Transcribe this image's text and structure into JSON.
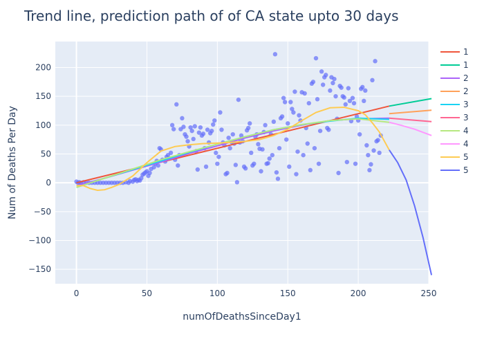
{
  "chart_data": {
    "type": "scatter",
    "title": "Trend line, prediction path of of CA state upto 30 days",
    "xlabel": "numOfDeathsSinceDay1",
    "ylabel": "Num of Deaths Per Day",
    "xlim": [
      -15,
      250
    ],
    "ylim": [
      -175,
      245
    ],
    "xticks": [
      0,
      50,
      100,
      150,
      200,
      250
    ],
    "yticks": [
      -150,
      -100,
      -50,
      0,
      50,
      100,
      150,
      200
    ],
    "grid": true,
    "legend_position": "right",
    "colors": {
      "plot_bg": "#e5ecf6",
      "grid": "#ffffff",
      "points": "#636efa"
    },
    "points": [
      [
        0,
        2
      ],
      [
        1,
        0
      ],
      [
        2,
        1
      ],
      [
        3,
        0
      ],
      [
        5,
        1
      ],
      [
        7,
        0
      ],
      [
        9,
        0
      ],
      [
        11,
        0
      ],
      [
        13,
        0
      ],
      [
        15,
        0
      ],
      [
        17,
        0
      ],
      [
        19,
        0
      ],
      [
        21,
        0
      ],
      [
        23,
        0
      ],
      [
        25,
        0
      ],
      [
        27,
        0
      ],
      [
        29,
        0
      ],
      [
        31,
        0
      ],
      [
        33,
        0
      ],
      [
        35,
        1
      ],
      [
        37,
        0
      ],
      [
        38,
        3
      ],
      [
        40,
        2
      ],
      [
        41,
        5
      ],
      [
        42,
        6
      ],
      [
        43,
        3
      ],
      [
        44,
        5
      ],
      [
        45,
        4
      ],
      [
        46,
        8
      ],
      [
        47,
        14
      ],
      [
        48,
        16
      ],
      [
        49,
        18
      ],
      [
        50,
        20
      ],
      [
        51,
        12
      ],
      [
        52,
        17
      ],
      [
        53,
        24
      ],
      [
        55,
        27
      ],
      [
        56,
        33
      ],
      [
        57,
        38
      ],
      [
        58,
        30
      ],
      [
        59,
        60
      ],
      [
        60,
        58
      ],
      [
        61,
        40
      ],
      [
        63,
        37
      ],
      [
        64,
        45
      ],
      [
        65,
        48
      ],
      [
        67,
        52
      ],
      [
        68,
        100
      ],
      [
        69,
        93
      ],
      [
        70,
        40
      ],
      [
        71,
        136
      ],
      [
        72,
        30
      ],
      [
        73,
        48
      ],
      [
        74,
        93
      ],
      [
        75,
        112
      ],
      [
        76,
        97
      ],
      [
        77,
        84
      ],
      [
        78,
        80
      ],
      [
        79,
        72
      ],
      [
        80,
        63
      ],
      [
        81,
        96
      ],
      [
        82,
        90
      ],
      [
        83,
        76
      ],
      [
        84,
        98
      ],
      [
        85,
        55
      ],
      [
        86,
        23
      ],
      [
        87,
        87
      ],
      [
        88,
        96
      ],
      [
        89,
        82
      ],
      [
        90,
        85
      ],
      [
        91,
        60
      ],
      [
        92,
        28
      ],
      [
        93,
        92
      ],
      [
        94,
        70
      ],
      [
        95,
        86
      ],
      [
        96,
        90
      ],
      [
        97,
        101
      ],
      [
        98,
        108
      ],
      [
        99,
        52
      ],
      [
        100,
        33
      ],
      [
        101,
        45
      ],
      [
        102,
        122
      ],
      [
        103,
        92
      ],
      [
        104,
        70
      ],
      [
        105,
        65
      ],
      [
        106,
        15
      ],
      [
        107,
        17
      ],
      [
        108,
        78
      ],
      [
        109,
        60
      ],
      [
        110,
        71
      ],
      [
        111,
        84
      ],
      [
        112,
        68
      ],
      [
        113,
        31
      ],
      [
        114,
        1
      ],
      [
        115,
        144
      ],
      [
        116,
        70
      ],
      [
        117,
        82
      ],
      [
        118,
        72
      ],
      [
        119,
        28
      ],
      [
        120,
        25
      ],
      [
        121,
        91
      ],
      [
        122,
        95
      ],
      [
        123,
        103
      ],
      [
        124,
        52
      ],
      [
        125,
        30
      ],
      [
        126,
        33
      ],
      [
        127,
        80
      ],
      [
        128,
        84
      ],
      [
        129,
        67
      ],
      [
        130,
        59
      ],
      [
        131,
        20
      ],
      [
        132,
        58
      ],
      [
        133,
        88
      ],
      [
        134,
        100
      ],
      [
        135,
        33
      ],
      [
        136,
        34
      ],
      [
        137,
        42
      ],
      [
        138,
        84
      ],
      [
        139,
        48
      ],
      [
        140,
        106
      ],
      [
        141,
        223
      ],
      [
        142,
        18
      ],
      [
        143,
        7
      ],
      [
        144,
        60
      ],
      [
        145,
        112
      ],
      [
        146,
        115
      ],
      [
        147,
        147
      ],
      [
        148,
        140
      ],
      [
        149,
        75
      ],
      [
        150,
        103
      ],
      [
        151,
        28
      ],
      [
        152,
        140
      ],
      [
        153,
        128
      ],
      [
        154,
        122
      ],
      [
        155,
        158
      ],
      [
        156,
        15
      ],
      [
        157,
        54
      ],
      [
        158,
        117
      ],
      [
        159,
        108
      ],
      [
        160,
        157
      ],
      [
        161,
        48
      ],
      [
        162,
        155
      ],
      [
        163,
        95
      ],
      [
        164,
        68
      ],
      [
        165,
        138
      ],
      [
        166,
        22
      ],
      [
        167,
        172
      ],
      [
        168,
        175
      ],
      [
        169,
        60
      ],
      [
        170,
        216
      ],
      [
        171,
        145
      ],
      [
        172,
        33
      ],
      [
        173,
        90
      ],
      [
        174,
        193
      ],
      [
        175,
        170
      ],
      [
        176,
        183
      ],
      [
        177,
        187
      ],
      [
        178,
        95
      ],
      [
        179,
        92
      ],
      [
        180,
        160
      ],
      [
        181,
        183
      ],
      [
        182,
        173
      ],
      [
        183,
        180
      ],
      [
        184,
        150
      ],
      [
        185,
        111
      ],
      [
        186,
        17
      ],
      [
        187,
        168
      ],
      [
        188,
        165
      ],
      [
        189,
        150
      ],
      [
        190,
        148
      ],
      [
        191,
        136
      ],
      [
        192,
        36
      ],
      [
        193,
        164
      ],
      [
        194,
        142
      ],
      [
        195,
        107
      ],
      [
        196,
        147
      ],
      [
        197,
        138
      ],
      [
        198,
        33
      ],
      [
        199,
        115
      ],
      [
        200,
        108
      ],
      [
        201,
        84
      ],
      [
        202,
        163
      ],
      [
        203,
        166
      ],
      [
        204,
        142
      ],
      [
        205,
        160
      ],
      [
        206,
        65
      ],
      [
        207,
        48
      ],
      [
        208,
        22
      ],
      [
        209,
        32
      ],
      [
        210,
        178
      ],
      [
        211,
        56
      ],
      [
        212,
        211
      ],
      [
        213,
        72
      ],
      [
        214,
        74
      ],
      [
        215,
        52
      ],
      [
        216,
        82
      ]
    ],
    "series": [
      {
        "name": "1",
        "color": "#ef553b",
        "x": [
          0,
          222
        ],
        "y": [
          0,
          133
        ]
      },
      {
        "name": "1",
        "color": "#00cc96",
        "x": [
          222,
          252
        ],
        "y": [
          133,
          146
        ]
      },
      {
        "name": "2",
        "color": "#ab63fa",
        "x": [
          0,
          20,
          40,
          60,
          80,
          100,
          120,
          140,
          160,
          180,
          200,
          222
        ],
        "y": [
          -5,
          8,
          22,
          36,
          51,
          64,
          78,
          90,
          100,
          108,
          111,
          112
        ]
      },
      {
        "name": "2",
        "color": "#ffa15a",
        "x": [
          222,
          252
        ],
        "y": [
          120,
          126
        ]
      },
      {
        "name": "3",
        "color": "#19d3f3",
        "x": [
          0,
          20,
          40,
          60,
          80,
          100,
          120,
          140,
          160,
          180,
          200,
          222
        ],
        "y": [
          -8,
          8,
          23,
          38,
          53,
          67,
          80,
          92,
          101,
          107,
          112,
          110
        ]
      },
      {
        "name": "3",
        "color": "#ff6692",
        "x": [
          222,
          252
        ],
        "y": [
          112,
          106
        ]
      },
      {
        "name": "4",
        "color": "#b6e880",
        "x": [
          0,
          20,
          40,
          60,
          80,
          100,
          120,
          140,
          160,
          180,
          200,
          222
        ],
        "y": [
          -8,
          8,
          24,
          40,
          54,
          67,
          80,
          92,
          101,
          108,
          111,
          105
        ]
      },
      {
        "name": "4",
        "color": "#ff97ff",
        "x": [
          222,
          230,
          240,
          252
        ],
        "y": [
          105,
          100,
          93,
          82
        ]
      },
      {
        "name": "5",
        "color": "#fecb52",
        "x": [
          0,
          5,
          10,
          15,
          20,
          25,
          30,
          40,
          50,
          60,
          70,
          80,
          90,
          100,
          110,
          120,
          130,
          140,
          150,
          160,
          170,
          180,
          190,
          200,
          205,
          210,
          215,
          222
        ],
        "y": [
          -5,
          -5,
          -10,
          -13,
          -12,
          -8,
          -3,
          12,
          35,
          55,
          63,
          66,
          68,
          69,
          70,
          72,
          75,
          82,
          93,
          108,
          122,
          130,
          131,
          125,
          118,
          104,
          88,
          57
        ]
      },
      {
        "name": "5",
        "color": "#636efa",
        "x": [
          222,
          228,
          234,
          240,
          246,
          252
        ],
        "y": [
          57,
          35,
          5,
          -40,
          -95,
          -160
        ]
      }
    ]
  }
}
